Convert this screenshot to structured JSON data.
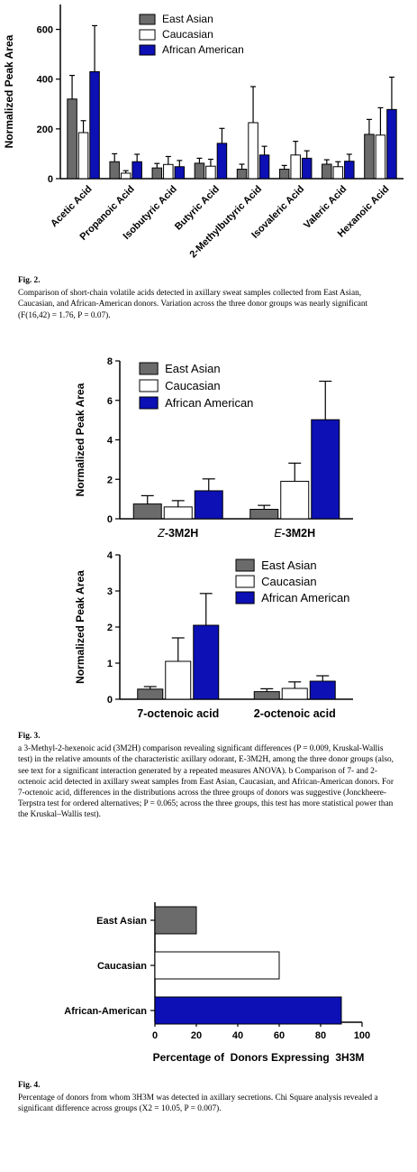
{
  "colors": {
    "east_asian": "#6b6b6b",
    "caucasian": "#ffffff",
    "african_american": "#0c10b5"
  },
  "chart_data": [
    {
      "id": "fig2",
      "type": "bar",
      "ylabel": "Normalized Peak Area",
      "ylim": [
        0,
        700
      ],
      "yticks": [
        0,
        200,
        400,
        600
      ],
      "categories": [
        "Acetic Acid",
        "Propanoic Acid",
        "Isobutyric Acid",
        "Butyric Acid",
        "2-Methylbutyric Acid",
        "Isovaleric Acid",
        "Valeric Acid",
        "Hexanoic Acid"
      ],
      "series": [
        {
          "name": "East Asian",
          "values": [
            320,
            68,
            43,
            62,
            38,
            38,
            58,
            178
          ],
          "errors": [
            95,
            32,
            18,
            20,
            20,
            15,
            18,
            60
          ]
        },
        {
          "name": "Caucasian",
          "values": [
            185,
            22,
            57,
            50,
            225,
            95,
            48,
            175
          ],
          "errors": [
            48,
            10,
            32,
            28,
            145,
            55,
            20,
            110
          ]
        },
        {
          "name": "African American",
          "values": [
            430,
            68,
            48,
            142,
            95,
            82,
            70,
            278
          ],
          "errors": [
            185,
            30,
            25,
            60,
            35,
            30,
            28,
            130
          ]
        }
      ],
      "legend": "top-center"
    },
    {
      "id": "fig3a",
      "type": "bar",
      "ylabel": "Normalized Peak Area",
      "ylim": [
        0,
        8
      ],
      "yticks": [
        0,
        2,
        4,
        6,
        8
      ],
      "categories": [
        "Z-3M2H",
        "E-3M2H"
      ],
      "series": [
        {
          "name": "East Asian",
          "values": [
            0.75,
            0.48
          ],
          "errors": [
            0.42,
            0.2
          ]
        },
        {
          "name": "Caucasian",
          "values": [
            0.6,
            1.9
          ],
          "errors": [
            0.32,
            0.92
          ]
        },
        {
          "name": "African American",
          "values": [
            1.42,
            5.02
          ],
          "errors": [
            0.6,
            1.95
          ]
        }
      ],
      "legend": "top-left"
    },
    {
      "id": "fig3b",
      "type": "bar",
      "ylabel": "Normalized Peak Area",
      "ylim": [
        0,
        4
      ],
      "yticks": [
        0,
        1,
        2,
        3,
        4
      ],
      "categories": [
        "7-octenoic acid",
        "2-octenoic acid"
      ],
      "series": [
        {
          "name": "East Asian",
          "values": [
            0.28,
            0.21
          ],
          "errors": [
            0.07,
            0.08
          ]
        },
        {
          "name": "Caucasian",
          "values": [
            1.05,
            0.3
          ],
          "errors": [
            0.65,
            0.18
          ]
        },
        {
          "name": "African American",
          "values": [
            2.05,
            0.5
          ],
          "errors": [
            0.88,
            0.15
          ]
        }
      ],
      "legend": "top-right"
    },
    {
      "id": "fig4",
      "type": "bar",
      "orientation": "horizontal",
      "xlabel": "Percentage of  Donors Expressing  3H3M",
      "xlim": [
        0,
        100
      ],
      "xticks": [
        0,
        20,
        40,
        60,
        80,
        100
      ],
      "categories": [
        "East Asian",
        "Caucasian",
        "African-American"
      ],
      "values": [
        20,
        60,
        90
      ]
    }
  ],
  "captions": {
    "fig2": {
      "label": "Fig. 2.",
      "text": "Comparison of short-chain volatile acids detected in axillary sweat samples collected from East Asian, Caucasian, and African-American donors. Variation across the three donor groups was nearly significant (F(16,42) = 1.76, P = 0.07)."
    },
    "fig3": {
      "label": "Fig. 3.",
      "text": "a 3-Methyl-2-hexenoic acid (3M2H) comparison revealing significant differences (P = 0.009, Kruskal-Wallis test) in the relative amounts of the characteristic axillary odorant, E-3M2H, among the three donor groups (also, see text for a significant interaction generated by a repeated measures ANOVA). b Comparison of 7- and 2-octenoic acid detected in axillary sweat samples from East Asian, Caucasian, and African-American donors. For 7-octenoic acid, differences in the distributions across the three groups of donors was suggestive (Jonckheere-Terpstra test for ordered alternatives; P = 0.065; across the three groups, this test has more statistical power than the Kruskal–Wallis test)."
    },
    "fig4": {
      "label": "Fig. 4.",
      "text": "Percentage of donors from whom 3H3M was detected in axillary secretions. Chi Square analysis revealed a significant difference across groups (X2 = 10.05, P = 0.007)."
    }
  }
}
